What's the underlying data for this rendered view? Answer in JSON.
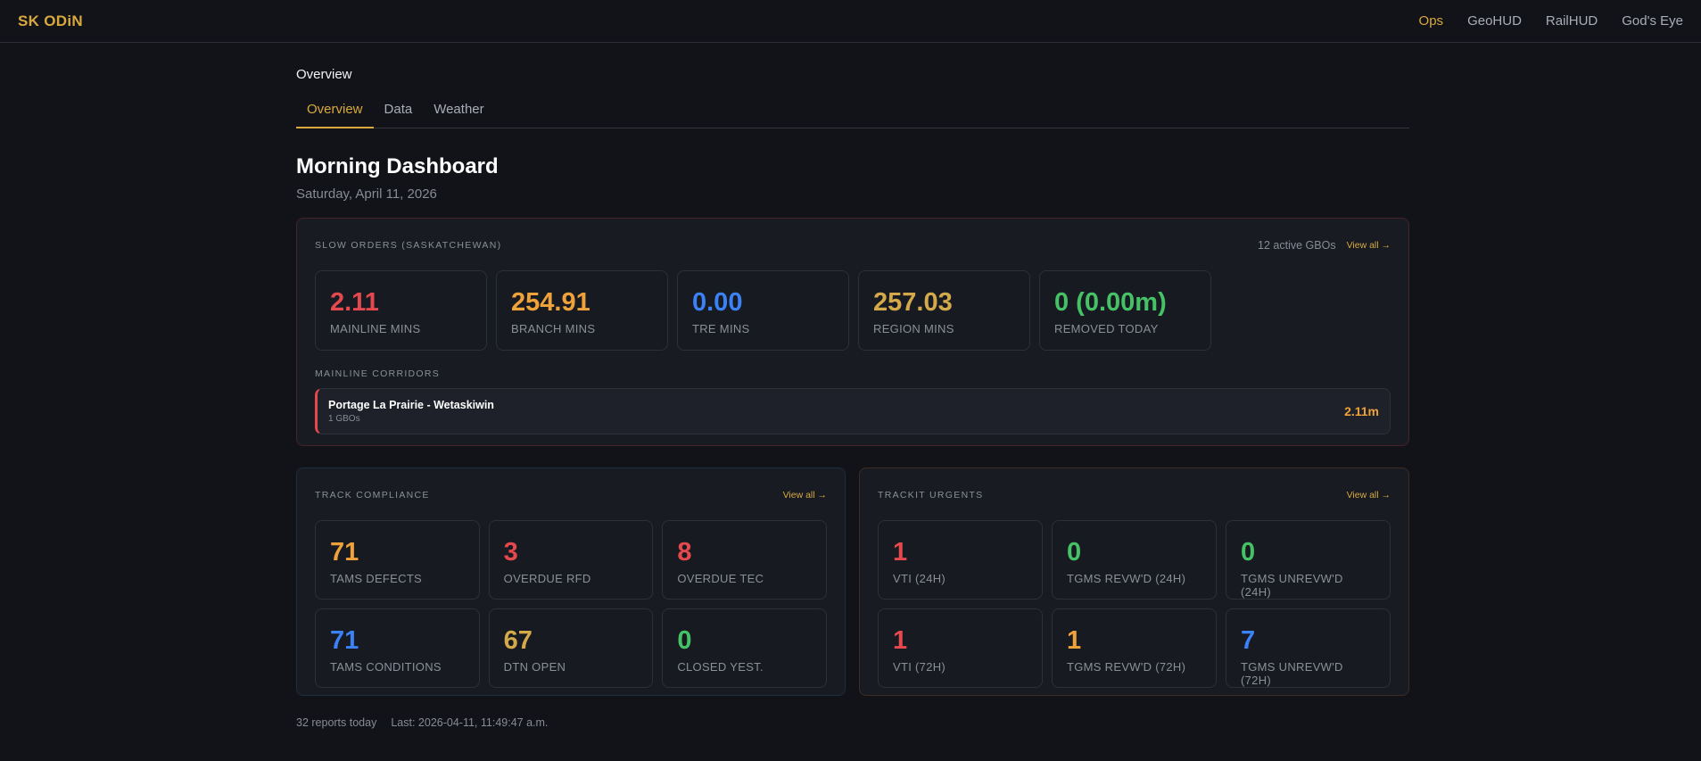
{
  "app": {
    "logo": "SK ODiN",
    "nav": [
      {
        "label": "Ops",
        "active": true
      },
      {
        "label": "GeoHUD"
      },
      {
        "label": "RailHUD"
      },
      {
        "label": "God's Eye"
      }
    ]
  },
  "breadcrumb": "Overview",
  "tabs": [
    {
      "label": "Overview",
      "active": true
    },
    {
      "label": "Data"
    },
    {
      "label": "Weather"
    }
  ],
  "title": "Morning Dashboard",
  "date": "Saturday, April 11, 2026",
  "colors": {
    "accent": "#d9a93e",
    "red": "#e5484d",
    "orange": "#f0a23a",
    "blue": "#3b82f6",
    "gold": "#d4a94a",
    "green": "#46c266"
  },
  "slow_orders": {
    "title": "SLOW ORDERS (SASKATCHEWAN)",
    "active": "12 active GBOs",
    "view_all": "View all →",
    "stats": [
      {
        "value": "2.11",
        "label": "MAINLINE MINS",
        "color": "#e5484d"
      },
      {
        "value": "254.91",
        "label": "BRANCH MINS",
        "color": "#f0a23a"
      },
      {
        "value": "0.00",
        "label": "TRE MINS",
        "color": "#3b82f6"
      },
      {
        "value": "257.03",
        "label": "REGION MINS",
        "color": "#d4a94a"
      },
      {
        "value": "0 (0.00m)",
        "label": "REMOVED TODAY",
        "color": "#46c266"
      }
    ],
    "corridors_title": "MAINLINE CORRIDORS",
    "corridors": [
      {
        "name": "Portage La Prairie - Wetaskiwin",
        "gbos": "1 GBOs",
        "mins": "2.11m"
      }
    ]
  },
  "track_compliance": {
    "title": "TRACK COMPLIANCE",
    "view_all": "View all →",
    "stats": [
      {
        "value": "71",
        "label": "TAMS DEFECTS",
        "color": "#f0a23a"
      },
      {
        "value": "3",
        "label": "OVERDUE RFD",
        "color": "#e5484d"
      },
      {
        "value": "8",
        "label": "OVERDUE TEC",
        "color": "#e5484d"
      },
      {
        "value": "71",
        "label": "TAMS CONDITIONS",
        "color": "#3b82f6"
      },
      {
        "value": "67",
        "label": "DTN OPEN",
        "color": "#d4a94a"
      },
      {
        "value": "0",
        "label": "CLOSED YEST.",
        "color": "#46c266"
      }
    ]
  },
  "trackit_urgents": {
    "title": "TRACKIT URGENTS",
    "view_all": "View all →",
    "stats": [
      {
        "value": "1",
        "label": "VTI (24H)",
        "color": "#e5484d"
      },
      {
        "value": "0",
        "label": "TGMS REVW'D (24H)",
        "color": "#46c266"
      },
      {
        "value": "0",
        "label": "TGMS UNREVW'D (24H)",
        "color": "#46c266"
      },
      {
        "value": "1",
        "label": "VTI (72H)",
        "color": "#e5484d"
      },
      {
        "value": "1",
        "label": "TGMS REVW'D (72H)",
        "color": "#f0a23a"
      },
      {
        "value": "7",
        "label": "TGMS UNREVW'D (72H)",
        "color": "#3b82f6"
      }
    ]
  },
  "footer": {
    "reports": "32 reports today",
    "last": "Last: 2026-04-11, 11:49:47 a.m."
  }
}
